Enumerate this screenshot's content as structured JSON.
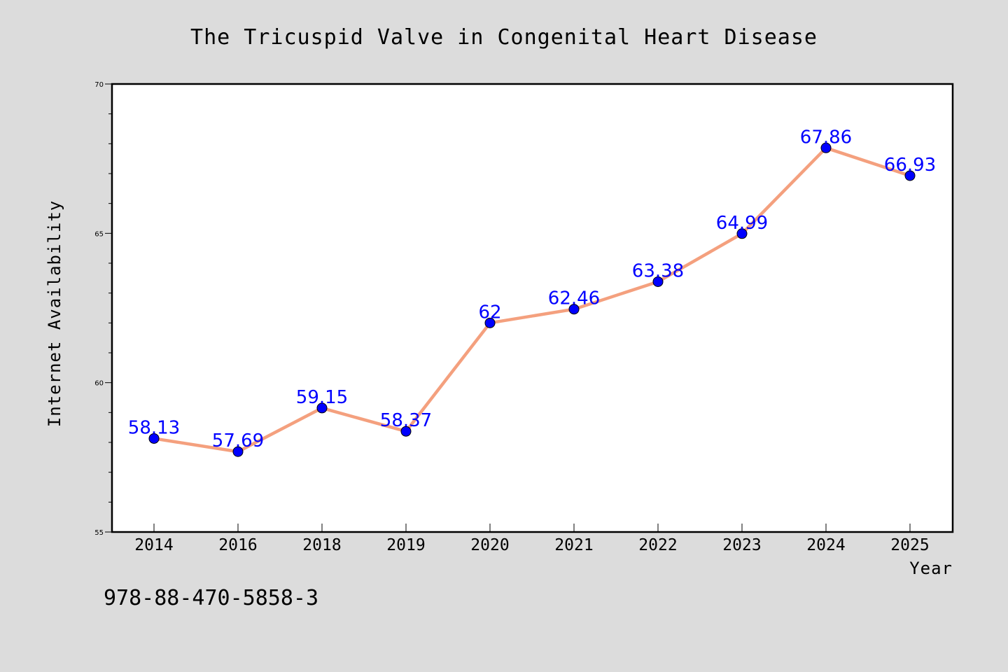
{
  "chart_data": {
    "type": "line",
    "title": "The Tricuspid Valve in Congenital Heart Disease",
    "xlabel": "Year",
    "ylabel": "Internet Availability",
    "categories": [
      "2014",
      "2016",
      "2018",
      "2019",
      "2020",
      "2021",
      "2022",
      "2023",
      "2024",
      "2025"
    ],
    "series": [
      {
        "values": [
          58.13,
          57.69,
          59.15,
          58.37,
          62,
          62.46,
          63.38,
          64.99,
          67.86,
          66.93
        ],
        "data_labels": [
          "58.13",
          "57.69",
          "59.15",
          "58.37",
          "62",
          "62.46",
          "63.38",
          "64.99",
          "67.86",
          "66.93"
        ]
      }
    ],
    "ylim": [
      55,
      70
    ],
    "yticks": [
      "55",
      "60",
      "65",
      "70"
    ],
    "grid": false,
    "legend": "none",
    "colors": {
      "line": "#f4a07e",
      "marker": "#0000ff",
      "data_label": "#0000ff",
      "background": "#dcdcdc",
      "plot_background": "#ffffff"
    }
  },
  "footer": {
    "isbn": "978-88-470-5858-3"
  }
}
